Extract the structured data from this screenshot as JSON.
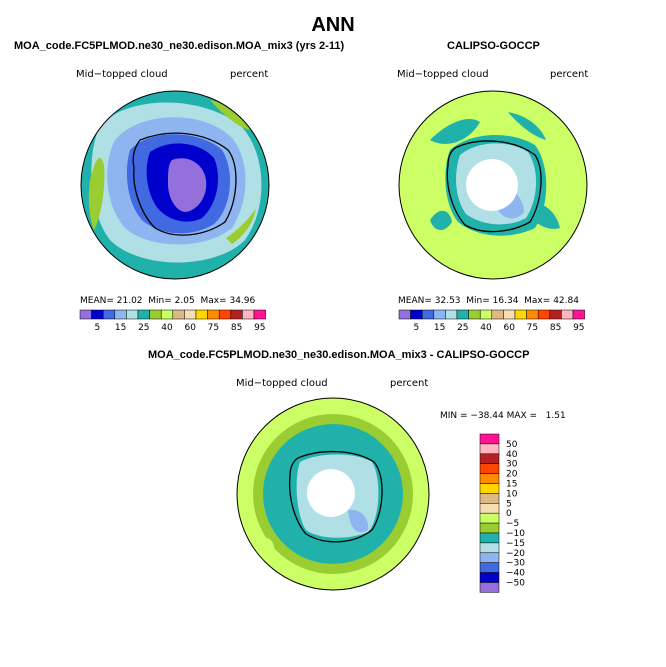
{
  "page": {
    "title": "ANN"
  },
  "panels": [
    {
      "title": "MOA_code.FC5PLMOD.ne30_ne30.edison.MOA_mix3 (yrs 2-11)",
      "variable": "Mid−topped cloud",
      "units": "percent",
      "mean_label": "MEAN=",
      "mean": "21.02",
      "min_label": "Min=",
      "min": "2.05",
      "max_label": "Max=",
      "max": "34.96"
    },
    {
      "title": "CALIPSO-GOCCP",
      "variable": "Mid−topped cloud",
      "units": "percent",
      "mean_label": "MEAN=",
      "mean": "32.53",
      "min_label": "Min=",
      "min": "16.34",
      "max_label": "Max=",
      "max": "42.84"
    },
    {
      "title": "MOA_code.FC5PLMOD.ne30_ne30.edison.MOA_mix3 - CALIPSO-GOCCP",
      "variable": "Mid−topped cloud",
      "units": "percent",
      "minmax_text": "MIN = −38.44 MAX =   1.51"
    }
  ],
  "chart_data": [
    {
      "type": "heatmap",
      "projection": "south polar stereographic",
      "title": "MOA_code.FC5PLMOD.ne30_ne30.edison.MOA_mix3 (yrs 2-11)",
      "colorbar_levels": [
        "5",
        "15",
        "25",
        "40",
        "60",
        "75",
        "85",
        "95"
      ],
      "colorbar_colors": [
        "#9370db",
        "#0000cd",
        "#4169e1",
        "#8fb5f0",
        "#b0e0e6",
        "#20b2aa",
        "#9acd32",
        "#ccff66",
        "#deb887",
        "#f5deb3",
        "#ffd700",
        "#ff8c00",
        "#ff4500",
        "#b22222",
        "#ffb6c1",
        "#ff1493"
      ],
      "mean": 21.02,
      "min": 2.05,
      "max": 34.96
    },
    {
      "type": "heatmap",
      "projection": "south polar stereographic",
      "title": "CALIPSO-GOCCP",
      "colorbar_levels": [
        "5",
        "15",
        "25",
        "40",
        "60",
        "75",
        "85",
        "95"
      ],
      "colorbar_colors": [
        "#9370db",
        "#0000cd",
        "#4169e1",
        "#8fb5f0",
        "#b0e0e6",
        "#20b2aa",
        "#9acd32",
        "#ccff66",
        "#deb887",
        "#f5deb3",
        "#ffd700",
        "#ff8c00",
        "#ff4500",
        "#b22222",
        "#ffb6c1",
        "#ff1493"
      ],
      "mean": 32.53,
      "min": 16.34,
      "max": 42.84
    },
    {
      "type": "heatmap",
      "projection": "south polar stereographic",
      "title": "MOA_code.FC5PLMOD.ne30_ne30.edison.MOA_mix3 - CALIPSO-GOCCP",
      "colorbar_levels": [
        "50",
        "40",
        "30",
        "20",
        "15",
        "10",
        "5",
        "0",
        "−5",
        "−10",
        "−15",
        "−20",
        "−30",
        "−40",
        "−50"
      ],
      "colorbar_colors": [
        "#ff1493",
        "#ffb6c1",
        "#b22222",
        "#ff4500",
        "#ff8c00",
        "#ffd700",
        "#deb887",
        "#f5deb3",
        "#ccff66",
        "#9acd32",
        "#20b2aa",
        "#b0e0e6",
        "#8fb5f0",
        "#4169e1",
        "#0000cd",
        "#9370db"
      ],
      "min": -38.44,
      "max": 1.51
    }
  ]
}
